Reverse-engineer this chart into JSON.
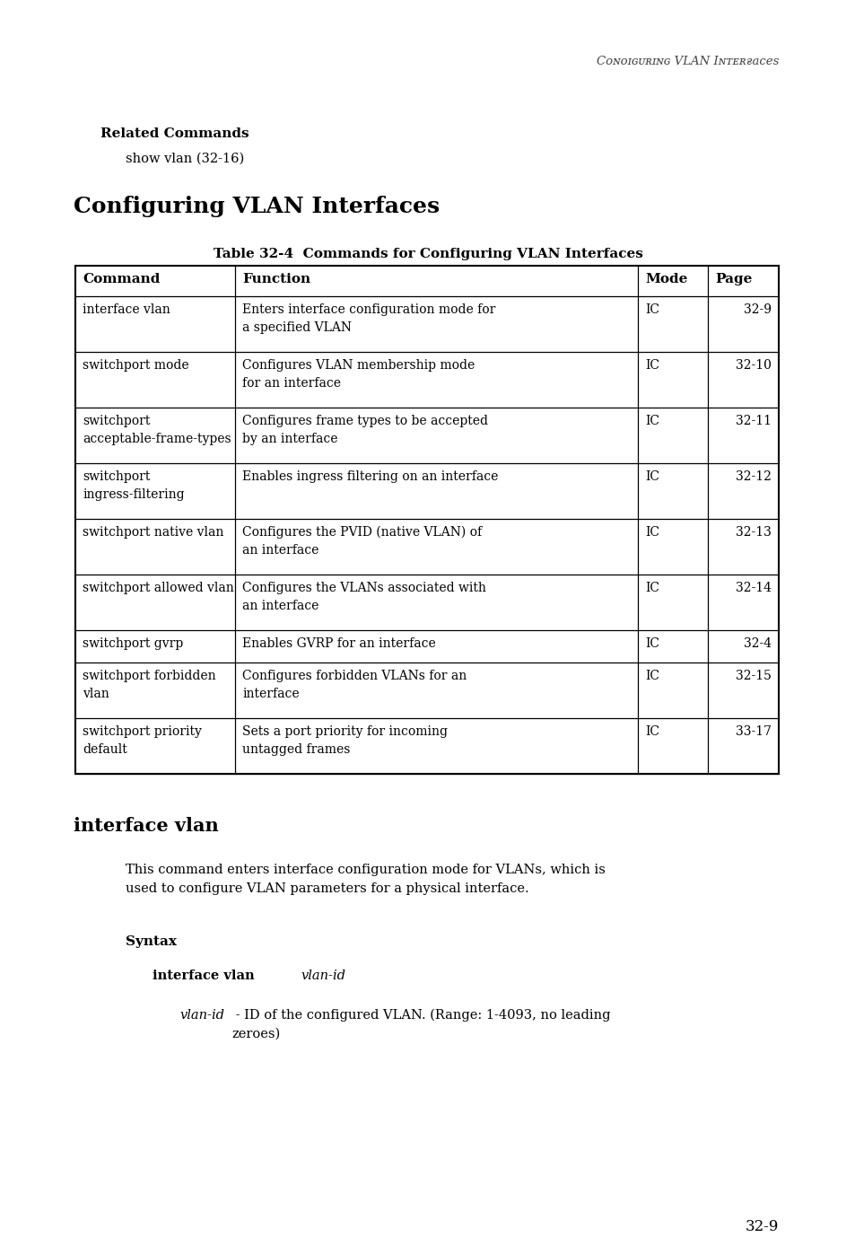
{
  "bg_color": "#ffffff",
  "header_text": "Configuring VLAN Interfaces",
  "related_commands_label": "Related Commands",
  "related_commands_item": "show vlan (32-16)",
  "section_heading": "Configuring VLAN Interfaces",
  "table_title": "Table 32-4  Commands for Configuring VLAN Interfaces",
  "table_headers": [
    "Command",
    "Function",
    "Mode",
    "Page"
  ],
  "table_rows": [
    [
      "interface vlan",
      "Enters interface configuration mode for\na specified VLAN",
      "IC",
      "32-9"
    ],
    [
      "switchport mode",
      "Configures VLAN membership mode\nfor an interface",
      "IC",
      "32-10"
    ],
    [
      "switchport\nacceptable-frame-types",
      "Configures frame types to be accepted\nby an interface",
      "IC",
      "32-11"
    ],
    [
      "switchport\ningress-filtering",
      "Enables ingress filtering on an interface",
      "IC",
      "32-12"
    ],
    [
      "switchport native vlan",
      "Configures the PVID (native VLAN) of\nan interface",
      "IC",
      "32-13"
    ],
    [
      "switchport allowed vlan",
      "Configures the VLANs associated with\nan interface",
      "IC",
      "32-14"
    ],
    [
      "switchport gvrp",
      "Enables GVRP for an interface",
      "IC",
      "32-4"
    ],
    [
      "switchport forbidden\nvlan",
      "Configures forbidden VLANs for an\ninterface",
      "IC",
      "32-15"
    ],
    [
      "switchport priority\ndefault",
      "Sets a port priority for incoming\nuntagged frames",
      "IC",
      "33-17"
    ]
  ],
  "subsection_heading": "interface vlan",
  "description_text": "This command enters interface configuration mode for VLANs, which is\nused to configure VLAN parameters for a physical interface.",
  "syntax_label": "Syntax",
  "syntax_bold": "interface vlan",
  "syntax_italic": "vlan-id",
  "param_italic": "vlan-id",
  "param_rest": " - ID of the configured VLAN. (Range: 1-4093, no leading\nzeroes)",
  "page_number": "32-9",
  "text_color": "#000000"
}
